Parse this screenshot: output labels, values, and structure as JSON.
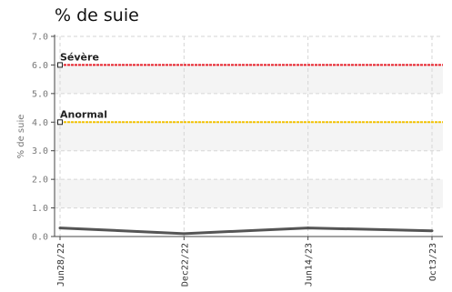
{
  "chart_data": {
    "type": "line",
    "title": "% de suie",
    "ylabel": "% de suie",
    "xlabel": "",
    "ylim": [
      0,
      7
    ],
    "yticks": [
      "0.0",
      "1.0",
      "2.0",
      "3.0",
      "4.0",
      "5.0",
      "6.0",
      "7.0"
    ],
    "categories": [
      "Jun28/22",
      "Dec22/22",
      "Jun14/23",
      "Oct3/23"
    ],
    "series": [
      {
        "values": [
          0.3,
          0.1,
          0.3,
          0.2
        ],
        "color": "#555555"
      }
    ],
    "thresholds": [
      {
        "label": "Sévère",
        "value": 6.0,
        "color": "#e8202a"
      },
      {
        "label": "Anormal",
        "value": 4.0,
        "color": "#f2c200"
      }
    ],
    "grid": true,
    "legend": "none"
  }
}
